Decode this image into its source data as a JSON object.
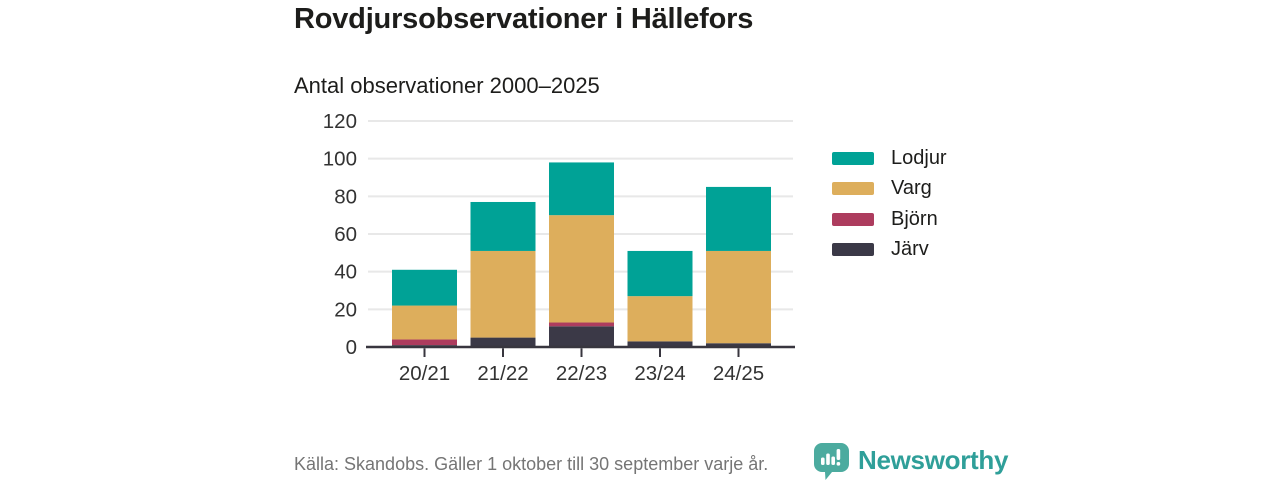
{
  "header": {
    "title": "Rovdjursobservationer i Hällefors",
    "subtitle": "Antal observationer 2000–2025"
  },
  "chart_data": {
    "type": "bar",
    "stacked": true,
    "title": "Rovdjursobservationer i Hällefors",
    "subtitle": "Antal observationer 2000–2025",
    "categories": [
      "20/21",
      "21/22",
      "22/23",
      "23/24",
      "24/25"
    ],
    "series": [
      {
        "name": "Järv",
        "color": "#3b3947",
        "values": [
          1,
          5,
          11,
          3,
          2
        ]
      },
      {
        "name": "Björn",
        "color": "#ad3c5e",
        "values": [
          3,
          0,
          2,
          0,
          0
        ]
      },
      {
        "name": "Varg",
        "color": "#ddae5c",
        "values": [
          18,
          46,
          57,
          24,
          49
        ]
      },
      {
        "name": "Lodjur",
        "color": "#00a296",
        "values": [
          19,
          26,
          28,
          24,
          34
        ]
      }
    ],
    "totals": [
      41,
      77,
      98,
      51,
      85
    ],
    "y_ticks": [
      0,
      20,
      40,
      60,
      80,
      100,
      120
    ],
    "ylim": [
      0,
      120
    ],
    "xlabel": "",
    "ylabel": "",
    "grid": "horizontal",
    "legend_position": "right",
    "legend_order": [
      "Lodjur",
      "Varg",
      "Björn",
      "Järv"
    ]
  },
  "footer": {
    "source": "Källa: Skandobs. Gäller 1 oktober till 30 september varje år.",
    "brand": "Newsworthy"
  },
  "colors": {
    "axis_text": "#333333",
    "gridline": "#e8e8e8",
    "axis_line": "#38363f",
    "title_text": "#1d1d1b",
    "source_text": "#757575",
    "brand_teal": "#2f9f99",
    "logo_bubble": "#4cab9f"
  }
}
